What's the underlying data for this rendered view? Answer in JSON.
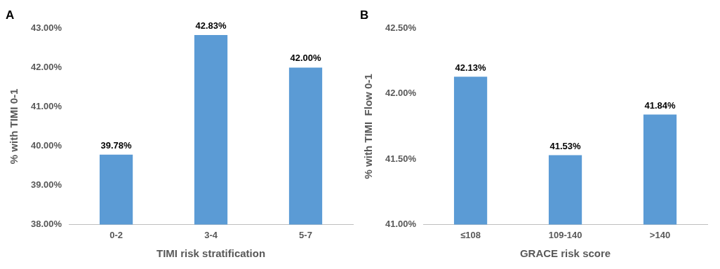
{
  "chart_data": [
    {
      "type": "bar",
      "title": "A",
      "xlabel": "TIMI risk stratification",
      "ylabel": "% with TIMI 0-1",
      "categories": [
        "0-2",
        "3-4",
        "5-7"
      ],
      "values": [
        39.78,
        42.83,
        42.0
      ],
      "value_labels": [
        "39.78%",
        "42.83%",
        "42.00%"
      ],
      "color": "#5b9bd5",
      "ylim": [
        38,
        43
      ],
      "yticks": [
        {
          "value": 38,
          "label": "38.00%"
        },
        {
          "value": 39,
          "label": "39.00%"
        },
        {
          "value": 40,
          "label": "40.00%"
        },
        {
          "value": 41,
          "label": "41.00%"
        },
        {
          "value": 42,
          "label": "42.00%"
        },
        {
          "value": 43,
          "label": "43.00%"
        }
      ],
      "grid": false,
      "legend": false
    },
    {
      "type": "bar",
      "title": "B",
      "xlabel": "GRACE risk score",
      "ylabel": "% with TIMI  Flow 0-1",
      "categories": [
        "≤108",
        "109-140",
        ">140"
      ],
      "values": [
        42.13,
        41.53,
        41.84
      ],
      "value_labels": [
        "42.13%",
        "41.53%",
        "41.84%"
      ],
      "color": "#5b9bd5",
      "ylim": [
        41,
        42.5
      ],
      "yticks": [
        {
          "value": 41,
          "label": "41.00%"
        },
        {
          "value": 41.5,
          "label": "41.50%"
        },
        {
          "value": 42,
          "label": "42.00%"
        },
        {
          "value": 42.5,
          "label": "42.50%"
        }
      ],
      "grid": false,
      "legend": false
    }
  ]
}
